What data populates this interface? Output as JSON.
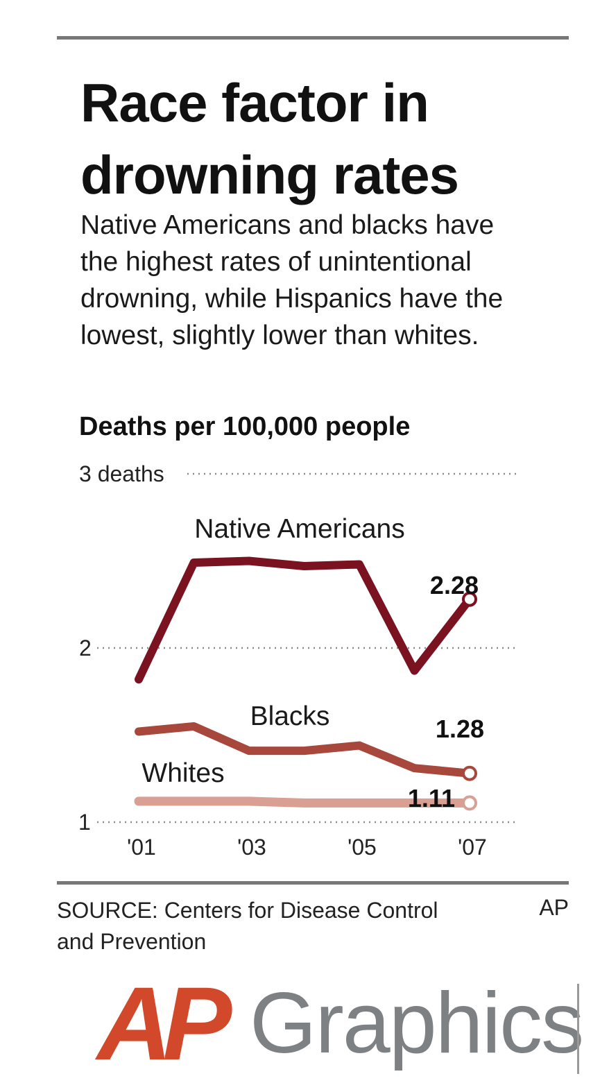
{
  "title": "Race factor in drowning rates",
  "subtitle": "Native Americans and blacks have the highest rates of unintentional drowning, while Hispanics have the lowest, slightly lower than whites.",
  "unit_label": "Deaths per 100,000 people",
  "source": "SOURCE: Centers for Disease Control and Prevention",
  "credit": "AP",
  "logo": {
    "mark": "AP",
    "word": "Graphics",
    "mark_color": "#d1492a",
    "word_color": "#7d8183"
  },
  "chart_data": {
    "type": "line",
    "title": "Deaths per 100,000 people",
    "x": [
      2001,
      2002,
      2003,
      2004,
      2005,
      2006,
      2007
    ],
    "x_ticks": [
      {
        "value": 2001,
        "label": "'01"
      },
      {
        "value": 2003,
        "label": "'03"
      },
      {
        "value": 2005,
        "label": "'05"
      },
      {
        "value": 2007,
        "label": "'07"
      }
    ],
    "y_ticks": [
      {
        "value": 1,
        "label": "1"
      },
      {
        "value": 2,
        "label": "2"
      },
      {
        "value": 3,
        "label": "3 deaths"
      }
    ],
    "ylim": [
      1,
      3
    ],
    "grid": "dotted horizontal",
    "series": [
      {
        "name": "Native Americans",
        "color": "#7a1220",
        "values": [
          1.82,
          2.49,
          2.5,
          2.47,
          2.48,
          1.87,
          2.28
        ],
        "end_label": "2.28"
      },
      {
        "name": "Blacks",
        "color": "#a8483c",
        "values": [
          1.52,
          1.55,
          1.41,
          1.41,
          1.44,
          1.31,
          1.28
        ],
        "end_label": "1.28"
      },
      {
        "name": "Whites",
        "color": "#d99f93",
        "values": [
          1.12,
          1.12,
          1.12,
          1.11,
          1.11,
          1.11,
          1.11
        ],
        "end_label": "1.11"
      }
    ]
  }
}
